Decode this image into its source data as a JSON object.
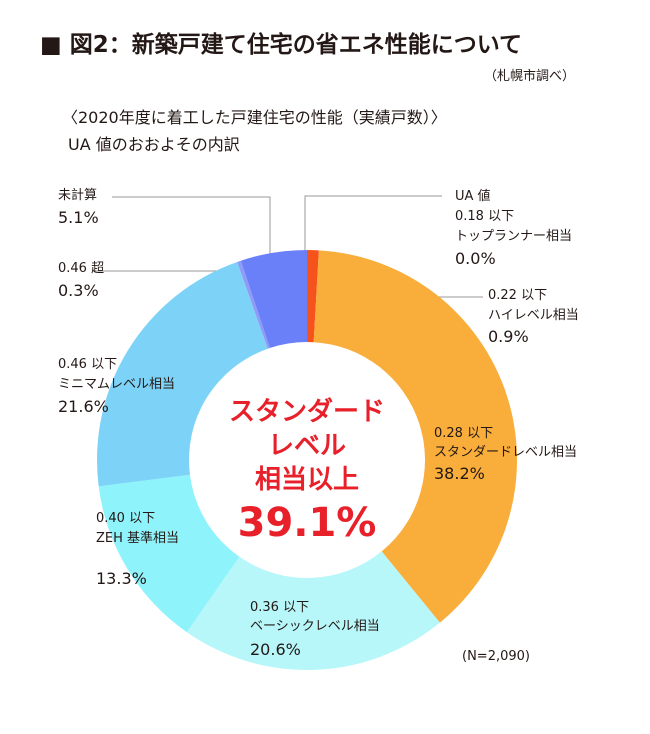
{
  "title": "■ 図2：新築戸建て住宅の省エネ性能について",
  "note": "（札幌市調べ）",
  "chart_data": {
    "type": "donut",
    "subtitle": "〈2020年度に着工した戸建住宅の性能（実績戸数）〉",
    "subtitle2": "UA 値のおおよその内訳",
    "categories": [
      [
        "UA 値",
        "0.18 以下",
        "トップランナー相当"
      ],
      [
        "0.22 以下",
        "ハイレベル相当"
      ],
      [
        "0.28 以下",
        "スタンダードレベル相当"
      ],
      [
        "0.36 以下",
        "ベーシックレベル相当"
      ],
      [
        "0.40 以下",
        "ZEH 基準相当"
      ],
      [
        "0.46 以下",
        "ミニマムレベル相当"
      ],
      [
        "0.46 超"
      ],
      [
        "未計算"
      ]
    ],
    "values": [
      0.0,
      0.9,
      38.2,
      20.6,
      13.3,
      21.6,
      0.3,
      5.1
    ],
    "value_labels": [
      "0.0%",
      "0.9%",
      "38.2%",
      "20.6%",
      "13.3%",
      "21.6%",
      "0.3%",
      "5.1%"
    ],
    "colors": [
      "#e8202a",
      "#f5521c",
      "#f9ad3a",
      "#b7f7f9",
      "#8ff3fb",
      "#7dd3f7",
      "#8f9cf7",
      "#6a80f8"
    ],
    "center": {
      "lines": [
        "スタンダード",
        "レベル",
        "相当以上"
      ],
      "value": 39.1,
      "value_label": "39.1%"
    },
    "sample_note": "(N=2,090)"
  }
}
